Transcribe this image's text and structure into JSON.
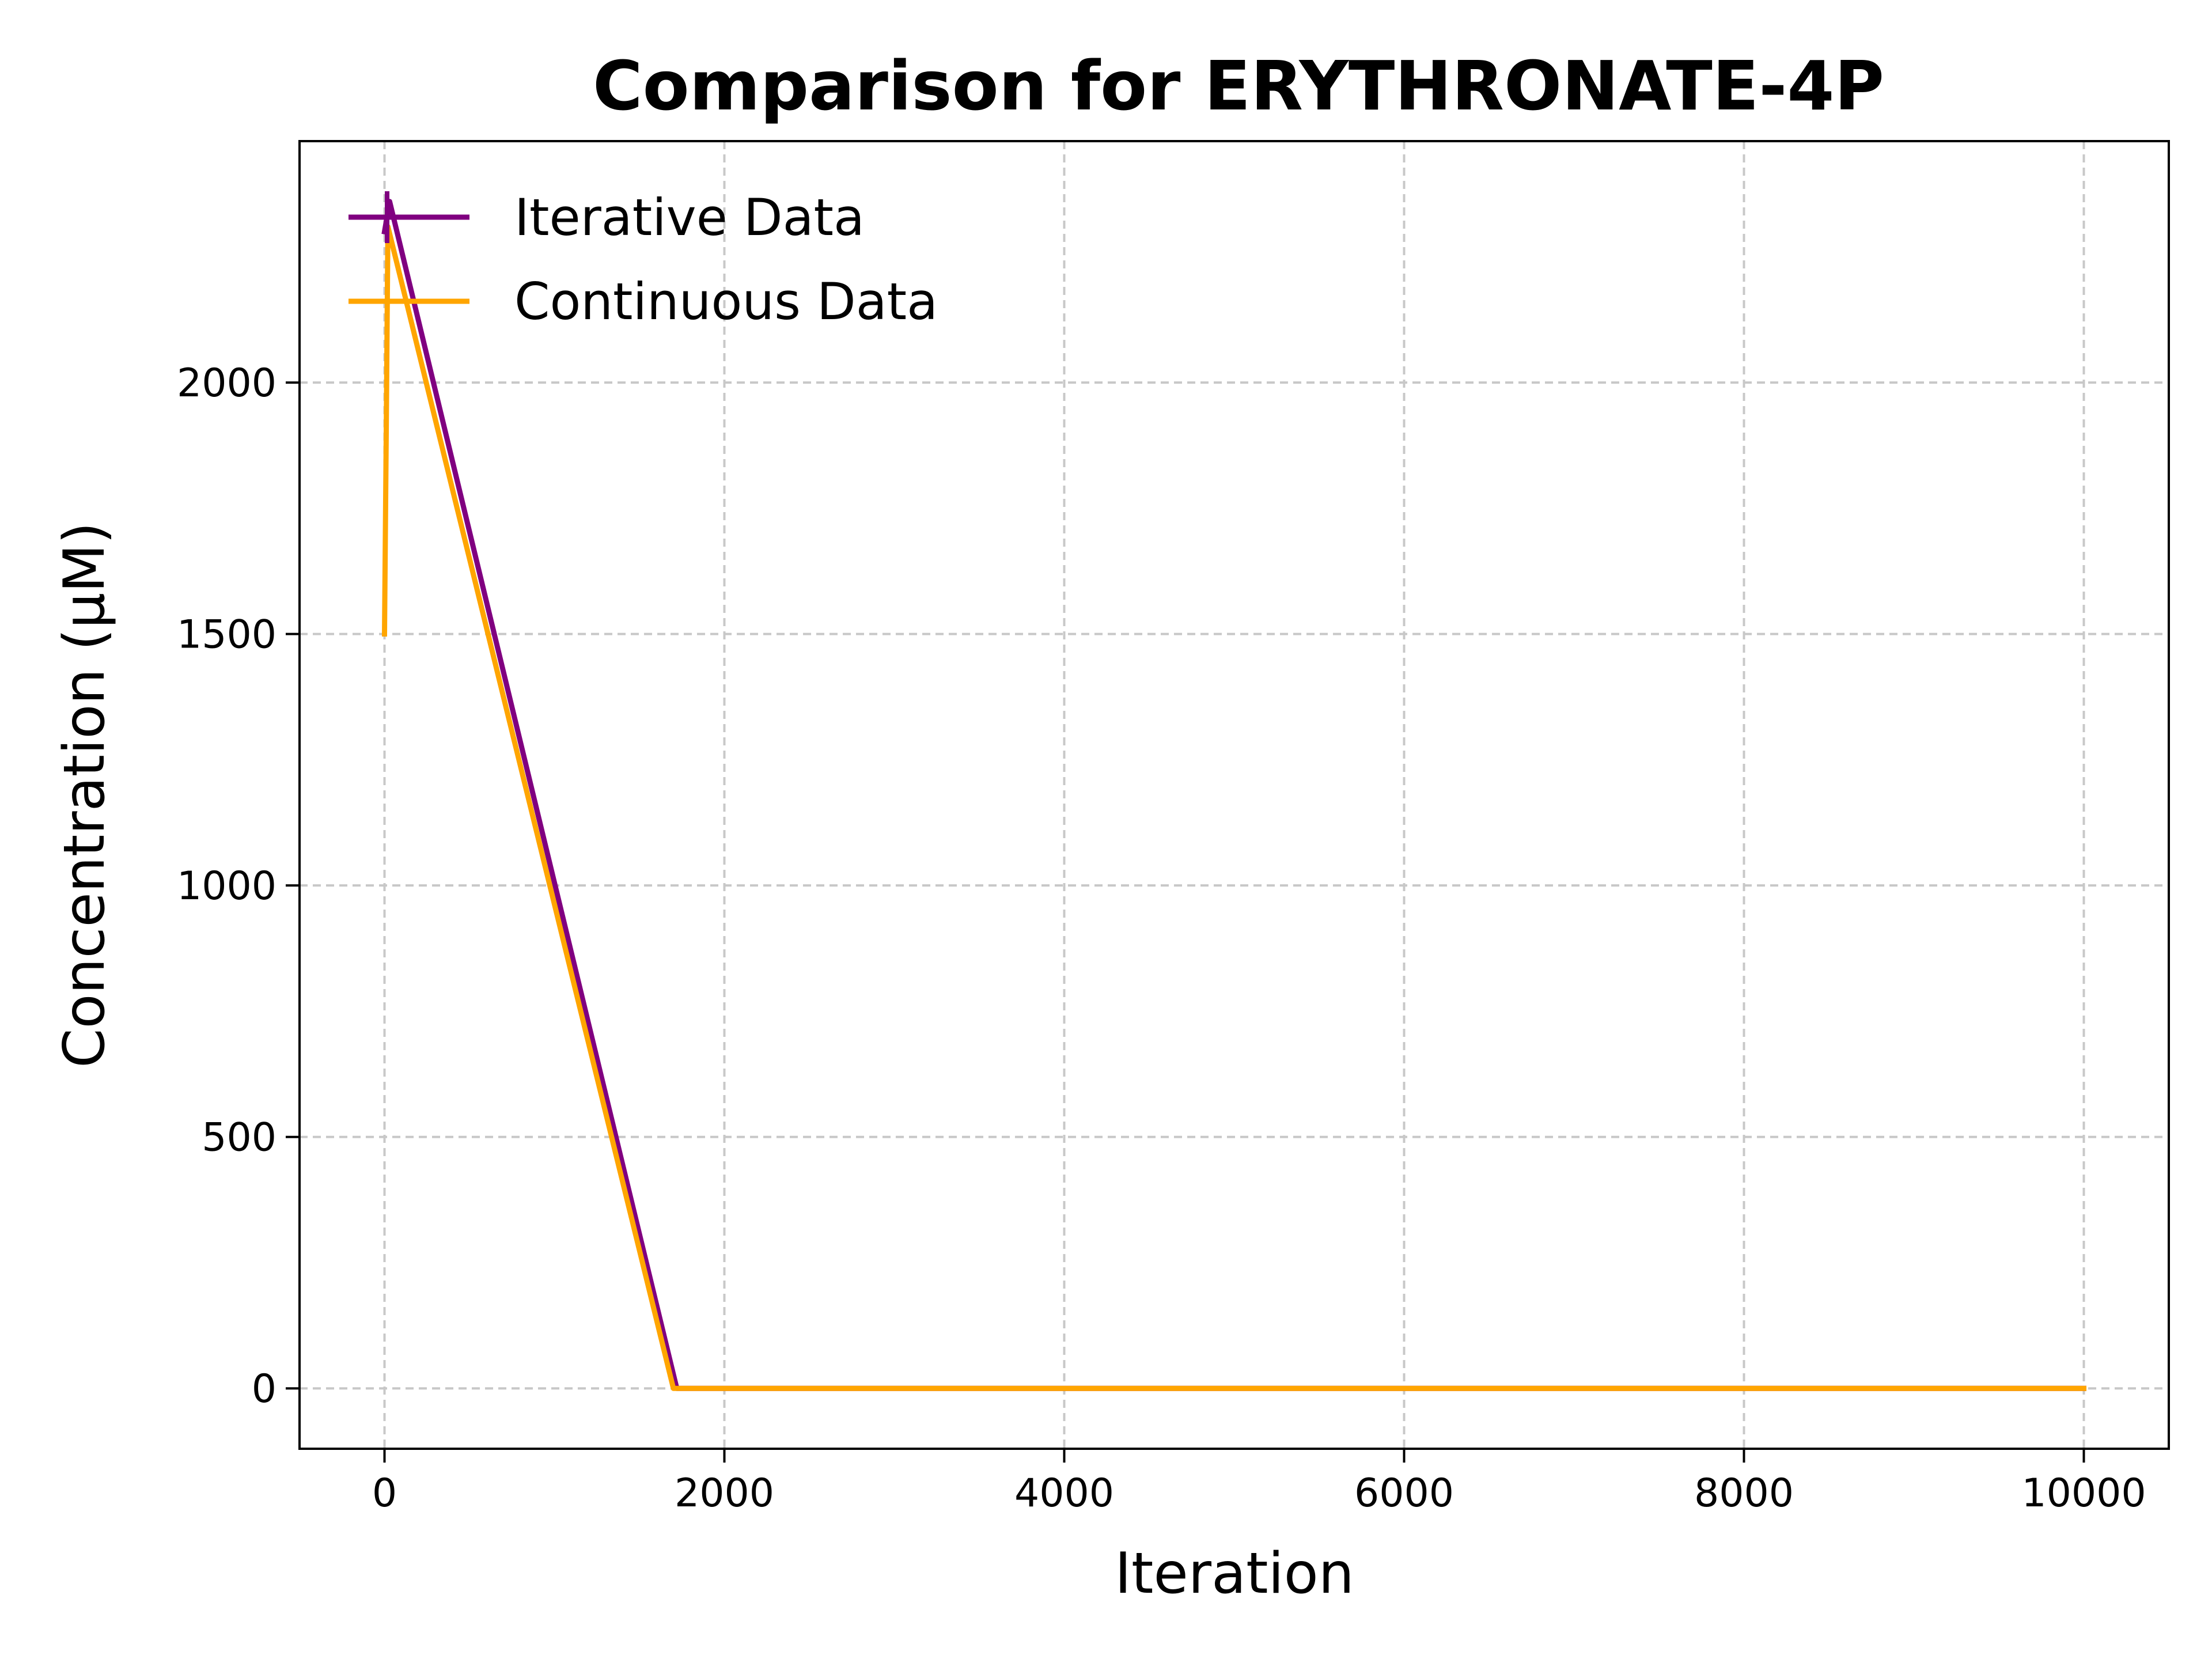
{
  "chart_data": {
    "type": "line",
    "title": "Comparison for ERYTHRONATE-4P",
    "xlabel": "Iteration",
    "ylabel": "Concentration (μM)",
    "xlim": [
      -500,
      10500
    ],
    "ylim": [
      -120,
      2480
    ],
    "xticks": [
      0,
      2000,
      4000,
      6000,
      8000,
      10000
    ],
    "xtick_labels": [
      "0",
      "2000",
      "4000",
      "6000",
      "8000",
      "10000"
    ],
    "yticks": [
      0,
      500,
      1000,
      1500,
      2000
    ],
    "ytick_labels": [
      "0",
      "500",
      "1000",
      "1500",
      "2000"
    ],
    "grid": true,
    "legend_position": "upper-left",
    "series": [
      {
        "name": "Iterative Data",
        "color": "#800080",
        "x": [
          0,
          30,
          1720,
          10000
        ],
        "y": [
          2300,
          2360,
          0,
          0
        ]
      },
      {
        "name": "Continuous Data",
        "color": "#FFA500",
        "x": [
          0,
          10,
          20,
          1700,
          10000
        ],
        "y": [
          1500,
          1900,
          2310,
          0,
          0
        ]
      }
    ]
  }
}
